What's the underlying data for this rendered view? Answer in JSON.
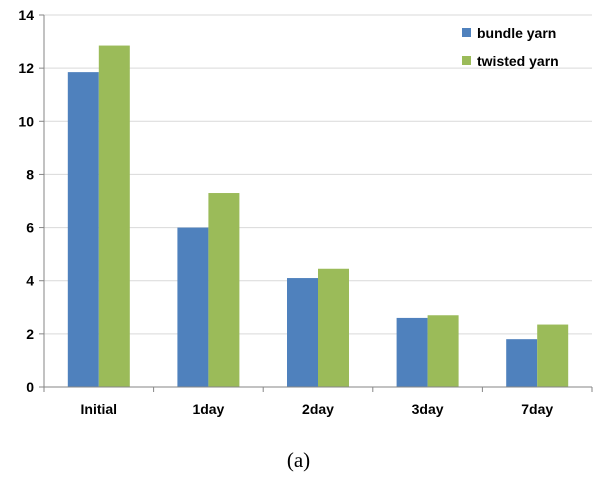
{
  "chart_data": {
    "type": "bar",
    "categories": [
      "Initial",
      "1day",
      "2day",
      "3day",
      "7day"
    ],
    "series": [
      {
        "name": "bundle yarn",
        "color": "#4f81bd",
        "values": [
          11.85,
          6.0,
          4.1,
          2.6,
          1.8
        ]
      },
      {
        "name": "twisted yarn",
        "color": "#9bbb59",
        "values": [
          12.85,
          7.3,
          4.45,
          2.7,
          2.35
        ]
      }
    ],
    "yticks": [
      0,
      2,
      4,
      6,
      8,
      10,
      12,
      14
    ],
    "ylim": [
      0,
      14
    ],
    "grid": true,
    "legend_position": "top-right"
  },
  "caption": "(a)"
}
